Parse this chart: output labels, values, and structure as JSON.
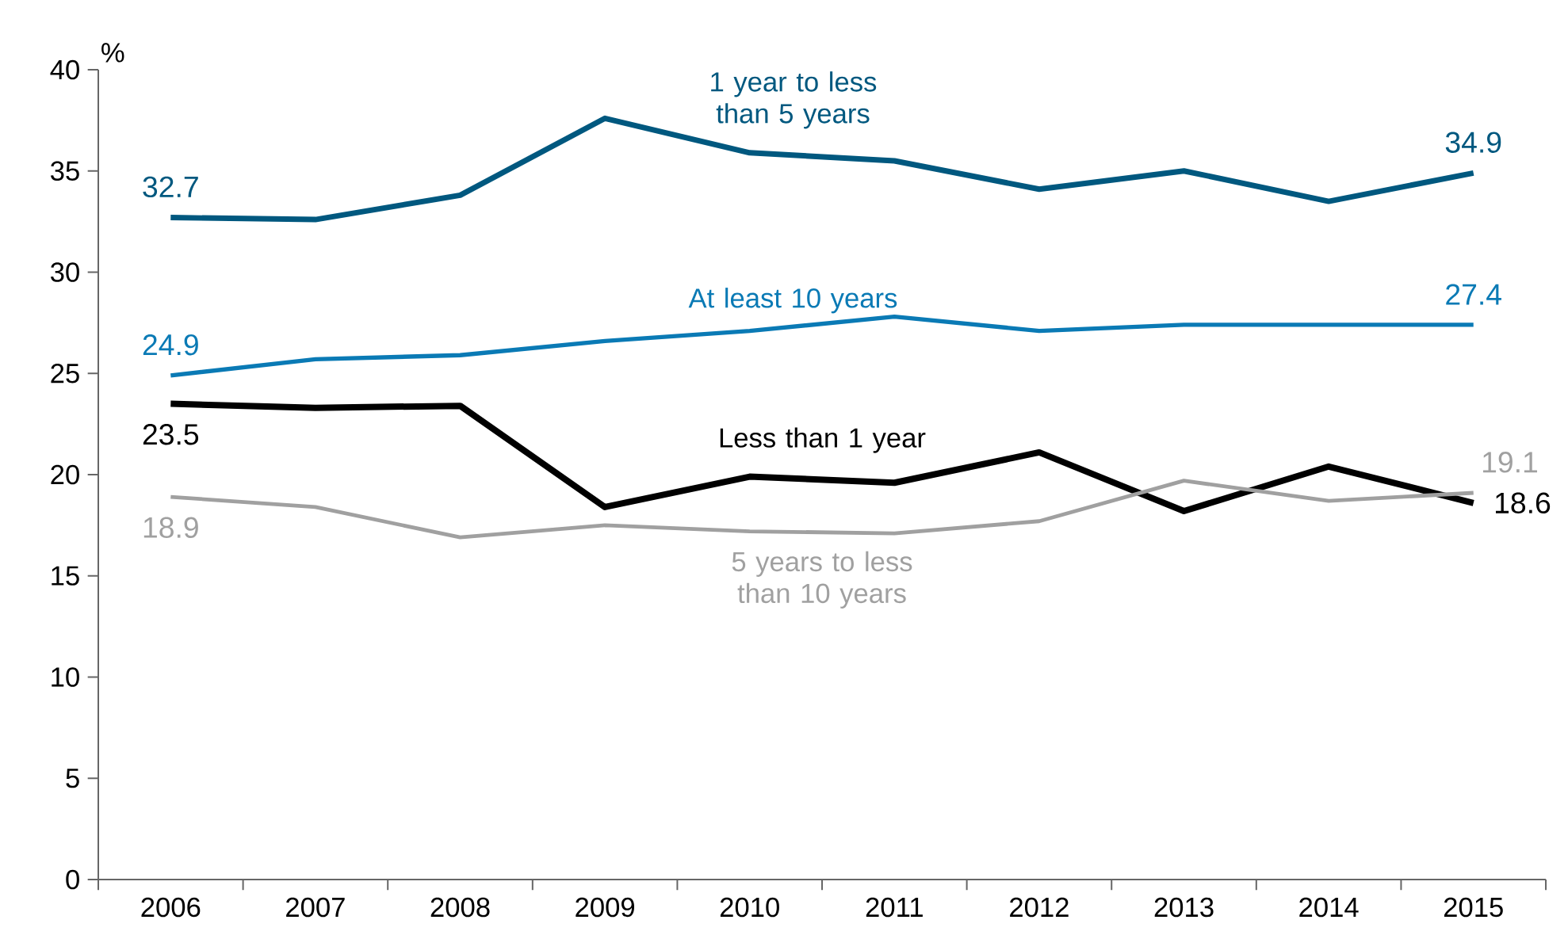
{
  "chart_data": {
    "type": "line",
    "ylabel": "%",
    "categories": [
      "2006",
      "2007",
      "2008",
      "2009",
      "2010",
      "2011",
      "2012",
      "2013",
      "2014",
      "2015"
    ],
    "series": [
      {
        "name": "1 year to less than 5 years",
        "color": "#00587f",
        "values": [
          32.7,
          32.6,
          33.8,
          37.6,
          35.9,
          35.5,
          34.1,
          35.0,
          33.5,
          34.9
        ],
        "value_labels": [
          "32.7",
          null,
          null,
          null,
          null,
          null,
          null,
          null,
          null,
          "34.9"
        ]
      },
      {
        "name": "At least 10 years",
        "color": "#0a7ab5",
        "values": [
          24.9,
          25.7,
          25.9,
          26.6,
          27.1,
          27.8,
          27.1,
          27.4,
          27.4,
          27.4
        ],
        "value_labels": [
          "24.9",
          null,
          null,
          null,
          null,
          null,
          null,
          null,
          null,
          "27.4"
        ]
      },
      {
        "name": "Less than 1 year",
        "color": "#000000",
        "values": [
          23.5,
          23.3,
          23.4,
          18.4,
          19.9,
          19.6,
          21.1,
          18.2,
          20.4,
          18.6
        ],
        "value_labels": [
          "23.5",
          null,
          null,
          null,
          null,
          null,
          null,
          null,
          null,
          "18.6"
        ]
      },
      {
        "name": "5 years to less than 10 years",
        "color": "#a0a0a0",
        "values": [
          18.9,
          18.4,
          16.9,
          17.5,
          17.2,
          17.1,
          17.7,
          19.7,
          18.7,
          19.1
        ],
        "value_labels": [
          "18.9",
          null,
          null,
          null,
          null,
          null,
          null,
          null,
          null,
          "19.1"
        ]
      }
    ],
    "ylim": [
      0,
      40
    ],
    "yticks": [
      0,
      5,
      10,
      15,
      20,
      25,
      30,
      35,
      40
    ],
    "grid": false,
    "marker": "none",
    "line_style": "solid"
  }
}
